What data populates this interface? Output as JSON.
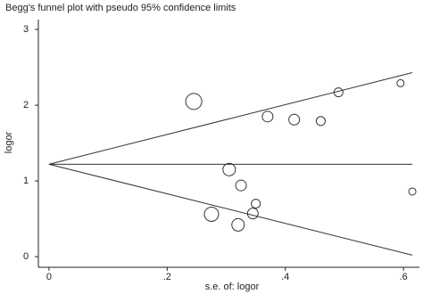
{
  "chart_data": {
    "type": "scatter",
    "title": "Begg's funnel plot with pseudo 95% confidence limits",
    "xlabel": "s.e. of: logor",
    "ylabel": "logor",
    "x": [
      0.245,
      0.49,
      0.595,
      0.37,
      0.415,
      0.46,
      0.305,
      0.325,
      0.35,
      0.345,
      0.275,
      0.32,
      0.615
    ],
    "values": [
      2.05,
      2.17,
      2.29,
      1.85,
      1.81,
      1.79,
      1.15,
      0.94,
      0.7,
      0.57,
      0.56,
      0.42,
      0.86
    ],
    "sizes": [
      9,
      5,
      4,
      6,
      6,
      5,
      7,
      6,
      5,
      6,
      8,
      7,
      4
    ],
    "lines": [
      {
        "x": [
          0,
          0.615
        ],
        "values": [
          1.22,
          1.22
        ]
      },
      {
        "x": [
          0,
          0.615
        ],
        "values": [
          1.22,
          2.43
        ]
      },
      {
        "x": [
          0,
          0.615
        ],
        "values": [
          1.22,
          0.02
        ]
      }
    ],
    "color": "#333333",
    "xlim": [
      -0.018,
      0.627
    ],
    "ylim": [
      -0.14,
      3.13
    ],
    "xticks": [
      0,
      {
        "value": 0.2,
        "label": ".2"
      },
      {
        "value": 0.4,
        "label": ".4"
      },
      {
        "value": 0.6,
        "label": ".6"
      }
    ],
    "yticks": [
      0,
      1,
      2,
      3
    ]
  }
}
